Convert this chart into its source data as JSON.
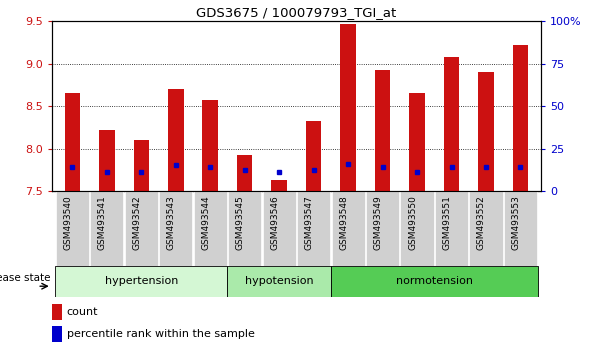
{
  "title": "GDS3675 / 100079793_TGI_at",
  "samples": [
    "GSM493540",
    "GSM493541",
    "GSM493542",
    "GSM493543",
    "GSM493544",
    "GSM493545",
    "GSM493546",
    "GSM493547",
    "GSM493548",
    "GSM493549",
    "GSM493550",
    "GSM493551",
    "GSM493552",
    "GSM493553"
  ],
  "count_values": [
    8.65,
    8.22,
    8.1,
    8.7,
    8.57,
    7.93,
    7.63,
    8.32,
    9.47,
    8.93,
    8.65,
    9.08,
    8.9,
    9.22
  ],
  "percentile_values": [
    7.79,
    7.72,
    7.72,
    7.81,
    7.79,
    7.75,
    7.72,
    7.75,
    7.82,
    7.79,
    7.72,
    7.79,
    7.79,
    7.79
  ],
  "ymin": 7.5,
  "ymax": 9.5,
  "yticks": [
    7.5,
    8.0,
    8.5,
    9.0,
    9.5
  ],
  "right_yticks": [
    0,
    25,
    50,
    75,
    100
  ],
  "right_yticklabels": [
    "0",
    "25",
    "50",
    "75",
    "100%"
  ],
  "groups": [
    {
      "label": "hypertension",
      "start": 0,
      "end": 5,
      "color": "#d4f7d4"
    },
    {
      "label": "hypotension",
      "start": 5,
      "end": 8,
      "color": "#aaeaaa"
    },
    {
      "label": "normotension",
      "start": 8,
      "end": 14,
      "color": "#55cc55"
    }
  ],
  "bar_color": "#cc1111",
  "dot_color": "#0000cc",
  "bar_width": 0.45,
  "ylabel_color": "#cc1111",
  "right_ylabel_color": "#0000cc",
  "legend_items": [
    "count",
    "percentile rank within the sample"
  ],
  "disease_state_label": "disease state",
  "baseline": 7.5,
  "xtick_bg": "#d0d0d0",
  "grid_linestyle": "dotted",
  "grid_color": "#000000",
  "grid_linewidth": 0.6
}
